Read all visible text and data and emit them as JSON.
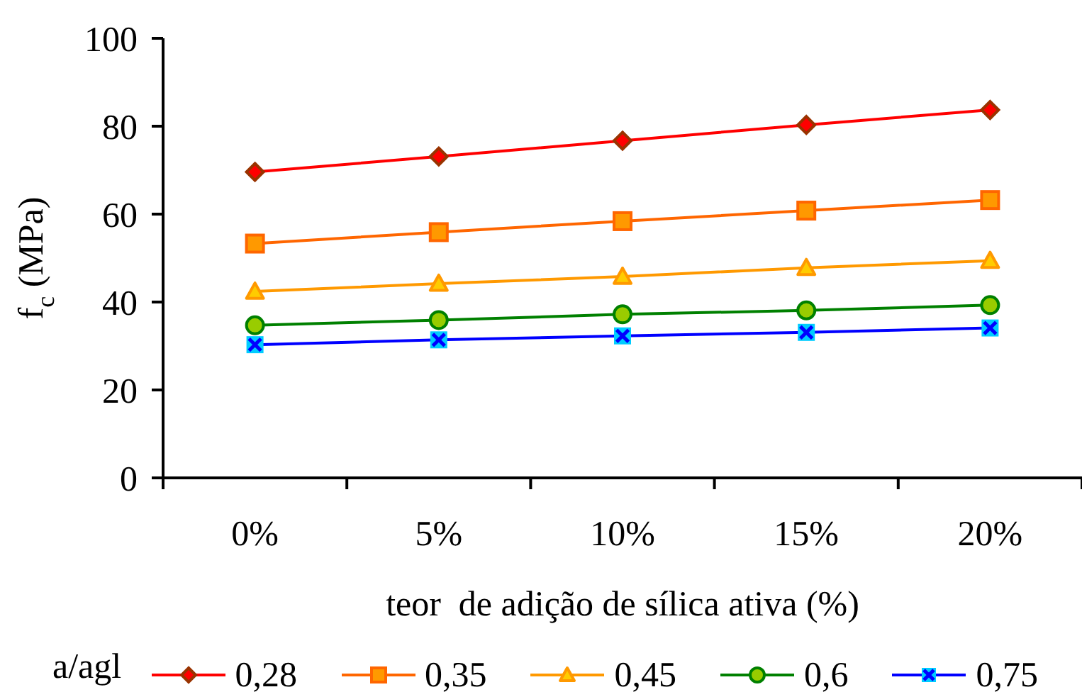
{
  "chart_data": {
    "type": "line",
    "xlabel": "teor  de adição de sílica ativa (%)",
    "ylabel": "f$_{c}$ (MPa)",
    "legend_title": "a/agl",
    "categories": [
      "0%",
      "5%",
      "10%",
      "15%",
      "20%"
    ],
    "ylim": [
      0,
      100
    ],
    "yticks": [
      0,
      20,
      40,
      60,
      80,
      100
    ],
    "legend": "bottom",
    "line_style": "solid",
    "series": [
      {
        "name": "0,28",
        "color": "#ff0000",
        "marker": "diamond",
        "values": [
          69.6,
          73.1,
          76.7,
          80.3,
          83.7
        ]
      },
      {
        "name": "0,35",
        "color": "#ff6600",
        "marker": "square",
        "values": [
          53.3,
          55.9,
          58.4,
          60.8,
          63.2
        ]
      },
      {
        "name": "0,45",
        "color": "#ff9900",
        "marker": "triangle",
        "values": [
          42.4,
          44.2,
          45.8,
          47.8,
          49.4
        ]
      },
      {
        "name": "0,6",
        "color": "#008000",
        "marker": "circle",
        "values": [
          34.7,
          35.9,
          37.2,
          38.1,
          39.3
        ]
      },
      {
        "name": "0,75",
        "color": "#0000ff",
        "marker": "cross",
        "values": [
          30.3,
          31.4,
          32.3,
          33.1,
          34.1
        ]
      }
    ]
  }
}
